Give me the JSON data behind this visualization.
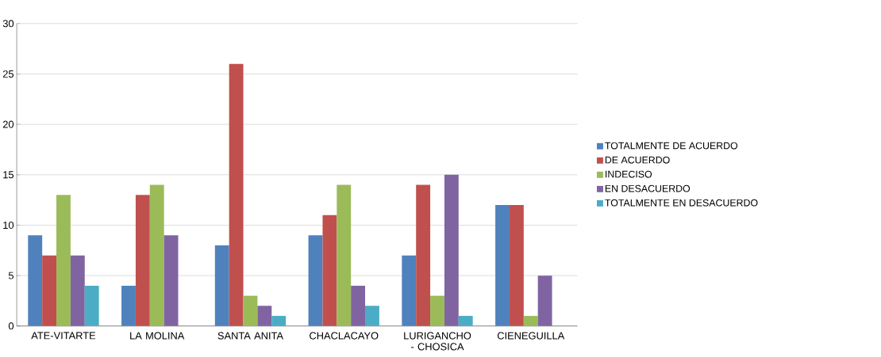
{
  "chart_data": {
    "type": "bar",
    "categories": [
      "ATE-VITARTE",
      "LA MOLINA",
      "SANTA ANITA",
      "CHACLACAYO",
      "LURIGANCHO - CHOSICA",
      "CIENEGUILLA"
    ],
    "series": [
      {
        "name": "TOTALMENTE DE ACUERDO",
        "color": "#4f81bd",
        "values": [
          9,
          4,
          8,
          9,
          7,
          12
        ]
      },
      {
        "name": "DE ACUERDO",
        "color": "#c0504d",
        "values": [
          7,
          13,
          26,
          11,
          14,
          12
        ]
      },
      {
        "name": "INDECISO",
        "color": "#9bbb59",
        "values": [
          13,
          14,
          3,
          14,
          3,
          1
        ]
      },
      {
        "name": "EN DESACUERDO",
        "color": "#8064a2",
        "values": [
          7,
          9,
          2,
          4,
          15,
          5
        ]
      },
      {
        "name": "TOTALMENTE EN DESACUERDO",
        "color": "#4bacc6",
        "values": [
          4,
          0,
          1,
          2,
          1,
          0
        ]
      }
    ],
    "ylim": [
      0,
      30
    ],
    "yticks": [
      0,
      5,
      10,
      15,
      20,
      25,
      30
    ],
    "grid": "y",
    "legend": "right"
  }
}
